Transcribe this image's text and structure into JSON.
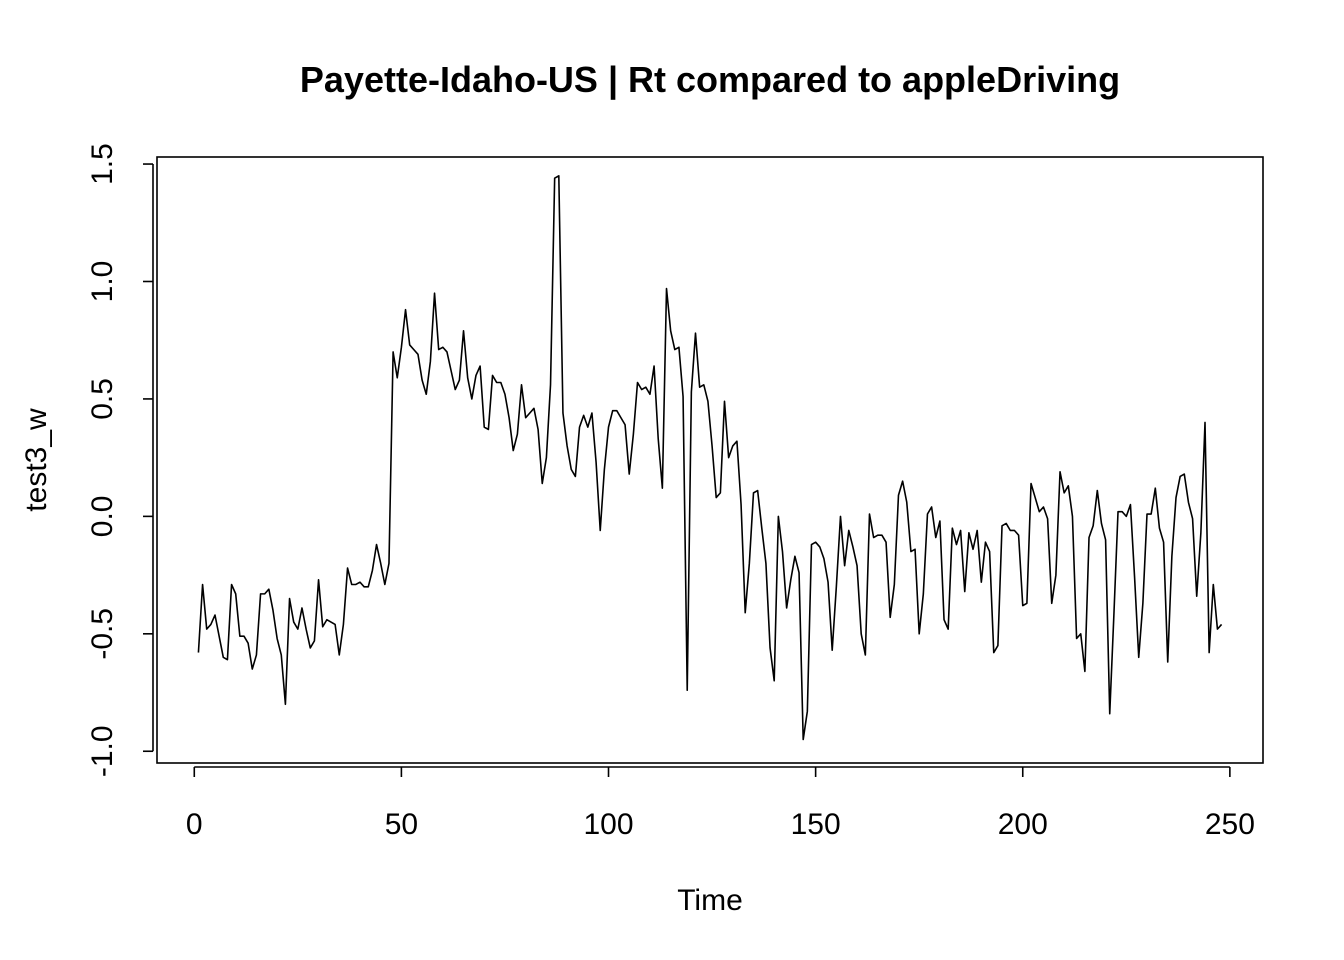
{
  "chart_data": {
    "type": "line",
    "title": "Payette-Idaho-US | Rt compared to appleDriving",
    "xlabel": "Time",
    "ylabel": "test3_w",
    "xlim": [
      -9,
      258
    ],
    "ylim": [
      -1.05,
      1.53
    ],
    "x_ticks": [
      0,
      50,
      100,
      150,
      200,
      250
    ],
    "x_tick_labels": [
      "0",
      "50",
      "100",
      "150",
      "200",
      "250"
    ],
    "y_ticks": [
      -1.0,
      -0.5,
      0.0,
      0.5,
      1.0,
      1.5
    ],
    "y_tick_labels": [
      "-1.0",
      "-0.5",
      "0.0",
      "0.5",
      "1.0",
      "1.5"
    ],
    "grid": false,
    "series": [
      {
        "x_start": 1,
        "color": "#000000",
        "values": [
          -0.58,
          -0.29,
          -0.48,
          -0.46,
          -0.42,
          -0.51,
          -0.6,
          -0.61,
          -0.29,
          -0.33,
          -0.51,
          -0.51,
          -0.54,
          -0.65,
          -0.59,
          -0.33,
          -0.33,
          -0.31,
          -0.4,
          -0.52,
          -0.59,
          -0.8,
          -0.35,
          -0.45,
          -0.48,
          -0.39,
          -0.48,
          -0.56,
          -0.53,
          -0.27,
          -0.47,
          -0.44,
          -0.45,
          -0.46,
          -0.59,
          -0.46,
          -0.22,
          -0.29,
          -0.29,
          -0.28,
          -0.3,
          -0.3,
          -0.23,
          -0.12,
          -0.2,
          -0.29,
          -0.2,
          0.7,
          0.59,
          0.72,
          0.88,
          0.73,
          0.71,
          0.69,
          0.58,
          0.52,
          0.66,
          0.95,
          0.71,
          0.72,
          0.7,
          0.62,
          0.54,
          0.58,
          0.79,
          0.59,
          0.5,
          0.6,
          0.64,
          0.38,
          0.37,
          0.6,
          0.57,
          0.57,
          0.52,
          0.42,
          0.28,
          0.35,
          0.56,
          0.42,
          0.44,
          0.46,
          0.37,
          0.14,
          0.25,
          0.56,
          1.44,
          1.45,
          0.44,
          0.3,
          0.2,
          0.17,
          0.38,
          0.43,
          0.38,
          0.44,
          0.23,
          -0.06,
          0.2,
          0.38,
          0.45,
          0.45,
          0.42,
          0.39,
          0.18,
          0.35,
          0.57,
          0.54,
          0.55,
          0.52,
          0.64,
          0.33,
          0.12,
          0.97,
          0.79,
          0.71,
          0.72,
          0.51,
          -0.74,
          0.53,
          0.78,
          0.55,
          0.56,
          0.49,
          0.3,
          0.08,
          0.1,
          0.49,
          0.25,
          0.3,
          0.32,
          0.05,
          -0.41,
          -0.2,
          0.1,
          0.11,
          -0.05,
          -0.2,
          -0.56,
          -0.7,
          0.0,
          -0.15,
          -0.39,
          -0.27,
          -0.17,
          -0.24,
          -0.95,
          -0.83,
          -0.12,
          -0.11,
          -0.13,
          -0.18,
          -0.28,
          -0.57,
          -0.3,
          0.0,
          -0.21,
          -0.06,
          -0.13,
          -0.21,
          -0.5,
          -0.59,
          0.01,
          -0.09,
          -0.08,
          -0.08,
          -0.11,
          -0.43,
          -0.29,
          0.09,
          0.15,
          0.06,
          -0.15,
          -0.14,
          -0.5,
          -0.33,
          0.01,
          0.04,
          -0.09,
          -0.02,
          -0.44,
          -0.48,
          -0.05,
          -0.12,
          -0.06,
          -0.32,
          -0.07,
          -0.14,
          -0.06,
          -0.28,
          -0.11,
          -0.15,
          -0.58,
          -0.55,
          -0.04,
          -0.03,
          -0.06,
          -0.06,
          -0.08,
          -0.38,
          -0.37,
          0.14,
          0.08,
          0.02,
          0.04,
          -0.01,
          -0.37,
          -0.25,
          0.19,
          0.1,
          0.13,
          0.0,
          -0.52,
          -0.5,
          -0.66,
          -0.09,
          -0.04,
          0.11,
          -0.03,
          -0.1,
          -0.84,
          -0.42,
          0.02,
          0.02,
          0.0,
          0.05,
          -0.26,
          -0.6,
          -0.37,
          0.01,
          0.01,
          0.12,
          -0.05,
          -0.11,
          -0.62,
          -0.17,
          0.08,
          0.17,
          0.18,
          0.06,
          -0.01,
          -0.34,
          -0.07,
          0.4,
          -0.58,
          -0.29,
          -0.48,
          -0.46
        ]
      }
    ]
  }
}
